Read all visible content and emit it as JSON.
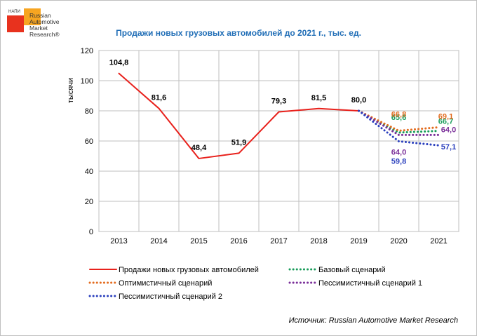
{
  "logo": {
    "small": "НАПИ",
    "line1": "Russian",
    "line2": "Automotive",
    "line3": "Market",
    "line4": "Research®"
  },
  "chart_data": {
    "type": "line",
    "title": "Продажи новых грузовых автомобилей до 2021 г., тыс. ед.",
    "ylabel": "тысячи",
    "xlabel": "",
    "categories": [
      "2013",
      "2014",
      "2015",
      "2016",
      "2017",
      "2018",
      "2019",
      "2020",
      "2021"
    ],
    "yticks": [
      "0",
      "20",
      "40",
      "60",
      "80",
      "100",
      "120"
    ],
    "ylim": [
      0,
      120
    ],
    "grid": true,
    "legend_position": "bottom",
    "series": [
      {
        "name": "Продажи новых грузовых автомобилей",
        "color": "#e8211c",
        "dashed": false,
        "points": [
          {
            "x": "2013",
            "y": 104.8,
            "label": "104,8"
          },
          {
            "x": "2014",
            "y": 81.6,
            "label": "81,6"
          },
          {
            "x": "2015",
            "y": 48.4,
            "label": "48,4"
          },
          {
            "x": "2016",
            "y": 51.9,
            "label": "51,9"
          },
          {
            "x": "2017",
            "y": 79.3,
            "label": "79,3"
          },
          {
            "x": "2018",
            "y": 81.5,
            "label": "81,5"
          },
          {
            "x": "2019",
            "y": 80.0,
            "label": "80,0"
          }
        ]
      },
      {
        "name": "Базовый сценарий",
        "color": "#1a9c5b",
        "dashed": true,
        "points": [
          {
            "x": "2019",
            "y": 80.0,
            "label": ""
          },
          {
            "x": "2020",
            "y": 65.6,
            "label": "65,6"
          },
          {
            "x": "2021",
            "y": 66.7,
            "label": "66,7"
          }
        ]
      },
      {
        "name": "Оптимистичный сценарий",
        "color": "#e36c1f",
        "dashed": true,
        "points": [
          {
            "x": "2019",
            "y": 80.0,
            "label": ""
          },
          {
            "x": "2020",
            "y": 66.8,
            "label": "66,8"
          },
          {
            "x": "2021",
            "y": 69.1,
            "label": "69,1"
          }
        ]
      },
      {
        "name": "Пессимистичный сценарий 1",
        "color": "#7a2f99",
        "dashed": true,
        "points": [
          {
            "x": "2019",
            "y": 80.0,
            "label": ""
          },
          {
            "x": "2020",
            "y": 64.0,
            "label": "64,0"
          },
          {
            "x": "2021",
            "y": 64.0,
            "label": "64,0"
          }
        ]
      },
      {
        "name": "Пессимистичный сценарий 2",
        "color": "#2a3fbd",
        "dashed": true,
        "points": [
          {
            "x": "2019",
            "y": 80.0,
            "label": ""
          },
          {
            "x": "2020",
            "y": 59.8,
            "label": "59,8"
          },
          {
            "x": "2021",
            "y": 57.1,
            "label": "57,1"
          }
        ]
      }
    ]
  },
  "source": "Источник: Russian Automotive Market Research"
}
